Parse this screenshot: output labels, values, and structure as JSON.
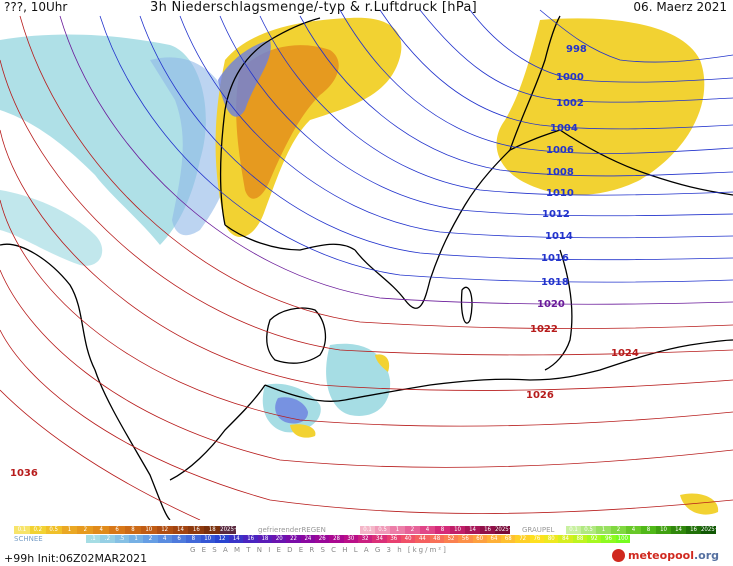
{
  "header": {
    "left": "???, 10Uhr",
    "title": "3h Niederschlagsmenge/-typ & r.Luftdruck [hPa]",
    "date": "06. Maerz 2021"
  },
  "isobars": [
    {
      "label": "998",
      "color": "#2233cc"
    },
    {
      "label": "1000",
      "color": "#2233cc"
    },
    {
      "label": "1002",
      "color": "#2233cc"
    },
    {
      "label": "1004",
      "color": "#2233cc"
    },
    {
      "label": "1006",
      "color": "#2233cc"
    },
    {
      "label": "1008",
      "color": "#2233cc"
    },
    {
      "label": "1010",
      "color": "#2233cc"
    },
    {
      "label": "1012",
      "color": "#2233cc"
    },
    {
      "label": "1014",
      "color": "#2233cc"
    },
    {
      "label": "1016",
      "color": "#2233cc"
    },
    {
      "label": "1018",
      "color": "#2233cc"
    },
    {
      "label": "1020",
      "color": "#6a1b9a"
    },
    {
      "label": "1022",
      "color": "#b71c1c"
    },
    {
      "label": "1024",
      "color": "#b71c1c"
    },
    {
      "label": "1026",
      "color": "#b71c1c"
    },
    {
      "label": "1036",
      "color": "#b71c1c"
    }
  ],
  "legend": {
    "rain_scale": [
      "0.1",
      "0.2",
      "0.5",
      "1",
      "2",
      "4",
      "6",
      "8",
      "10",
      "12",
      "14",
      "16",
      "18",
      "2025+"
    ],
    "freezing_rain_label": "gefrierenderREGEN",
    "freezing_rain_scale": [
      "0.1",
      "0.5",
      "1",
      "2",
      "4",
      "8",
      "10",
      "14",
      "16",
      "2025+"
    ],
    "graupel_label": "GRAUPEL",
    "graupel_scale": [
      "0.1",
      "0.5",
      "1",
      "2",
      "4",
      "8",
      "10",
      "14",
      "16",
      "2025+"
    ],
    "snow_label": "SCHNEE",
    "snow_scale": [
      ".1",
      ".2",
      ".5",
      "1",
      "2",
      "4",
      "6",
      "8",
      "10",
      "12",
      "14",
      "16",
      "18",
      "20",
      "22",
      "24",
      "26",
      "28",
      "30",
      "32",
      "34",
      "36",
      "40",
      "44",
      "48",
      "52",
      "56",
      "60",
      "64",
      "68",
      "72",
      "76",
      "80",
      "84",
      "88",
      "92",
      "96",
      "100"
    ],
    "total_label": "G E S A M T N I E D E R S C H L A G   3 h   [kg/m²]"
  },
  "footer": {
    "init": "+99h  Init:06Z02MAR2021",
    "logo_a": "meteo",
    "logo_b": "pool",
    "logo_c": ".org"
  },
  "colors": {
    "rain_yellow": "#f2d232",
    "rain_orange": "#e69a1f",
    "snow_blue": "#8fb8e8",
    "snow_cyan": "#a6dde4",
    "low_pressure_isobar": "#2233cc",
    "high_pressure_isobar": "#b71c1c"
  }
}
